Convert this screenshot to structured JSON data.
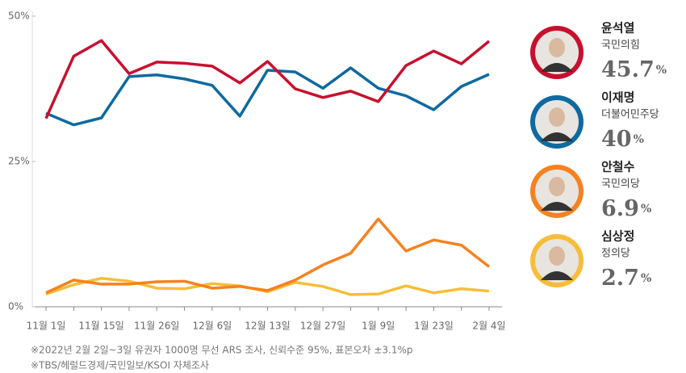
{
  "chart_data": {
    "type": "line",
    "categories": [
      "11월 1일",
      null,
      "11월 15일",
      null,
      "11월 26일",
      null,
      "12월 6일",
      null,
      "12월 13일",
      null,
      "12월 27일",
      null,
      "1월 9일",
      null,
      "1월 23일",
      null,
      "2월 4일"
    ],
    "ylim": [
      0,
      50
    ],
    "yticks": [
      {
        "value": 0,
        "label": "0%"
      },
      {
        "value": 25,
        "label": "25%"
      },
      {
        "value": 50,
        "label": "50%"
      }
    ],
    "series": [
      {
        "name": "윤석열",
        "party": "국민의힘",
        "color": "#c8102e",
        "values": [
          32.4,
          43.1,
          45.8,
          40.1,
          42.1,
          41.9,
          41.4,
          38.5,
          42.2,
          37.5,
          36.0,
          37.1,
          35.3,
          41.5,
          44.0,
          41.8,
          45.7
        ],
        "value_labels": [
          null,
          null,
          null,
          null,
          null,
          null,
          null,
          null,
          null,
          null,
          null,
          null,
          null,
          null,
          null,
          null,
          "45.7%"
        ]
      },
      {
        "name": "이재명",
        "party": "더불어민주당",
        "color": "#0e6aa0",
        "values": [
          33.3,
          31.3,
          32.5,
          39.6,
          39.9,
          39.2,
          38.1,
          32.8,
          40.7,
          40.4,
          37.6,
          41.1,
          37.6,
          36.3,
          33.9,
          37.9,
          40
        ],
        "value_labels": [
          null,
          null,
          null,
          null,
          null,
          null,
          null,
          null,
          null,
          null,
          null,
          null,
          null,
          null,
          null,
          null,
          "40%"
        ]
      },
      {
        "name": "안철수",
        "party": "국민의당",
        "color": "#f58220",
        "values": [
          2.4,
          4.6,
          3.9,
          3.9,
          4.3,
          4.4,
          3.2,
          3.5,
          2.8,
          4.6,
          7.2,
          9.2,
          15.1,
          9.6,
          11.5,
          10.6,
          6.9
        ],
        "value_labels": [
          null,
          null,
          null,
          null,
          null,
          null,
          null,
          null,
          null,
          null,
          null,
          null,
          null,
          null,
          null,
          null,
          "6.9%"
        ]
      },
      {
        "name": "심상정",
        "party": "정의당",
        "color": "#f7bd3a",
        "values": [
          2.2,
          3.8,
          4.9,
          4.4,
          3.2,
          3.1,
          4.0,
          3.6,
          2.6,
          4.2,
          3.5,
          2.1,
          2.2,
          3.6,
          2.4,
          3.1,
          2.7
        ],
        "value_labels": [
          null,
          null,
          null,
          null,
          null,
          null,
          null,
          null,
          null,
          null,
          null,
          null,
          null,
          null,
          null,
          null,
          "2.7%"
        ]
      }
    ],
    "notes": [
      "※2022년 2월 2일~3일 유권자 1000명 무선 ARS 조사, 신뢰수준 95%, 표본오차 ±3.1%p",
      "※TBS/헤럴드경제/국민일보/KSOI 자체조사"
    ]
  }
}
